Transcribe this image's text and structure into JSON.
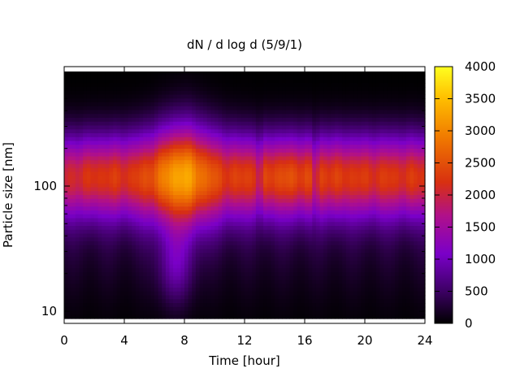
{
  "chart_data": {
    "type": "heatmap",
    "title": "dN / d log d (5/9/1)",
    "xlabel": "Time [hour]",
    "ylabel": "Particle size [nm]",
    "x_range": [
      0,
      24
    ],
    "x_ticks": [
      0,
      4,
      8,
      12,
      16,
      20,
      24
    ],
    "y_scale": "log",
    "y_range": [
      8,
      900
    ],
    "y_ticks": [
      10,
      100
    ],
    "colorbar": {
      "range": [
        0,
        4000
      ],
      "ticks": [
        0,
        500,
        1000,
        1500,
        2000,
        2500,
        3000,
        3500,
        4000
      ],
      "colormap": [
        "#000000",
        "#3a0060",
        "#7a00c8",
        "#b0108a",
        "#d83010",
        "#f07800",
        "#ffc000",
        "#ffff20"
      ]
    },
    "grid": false,
    "features": {
      "peak_diameter_nm": 120,
      "peak_value_approx": 3200,
      "peak_time_hour": 7.8,
      "low_concentration_times_hour": [
        13,
        16.7
      ]
    }
  }
}
